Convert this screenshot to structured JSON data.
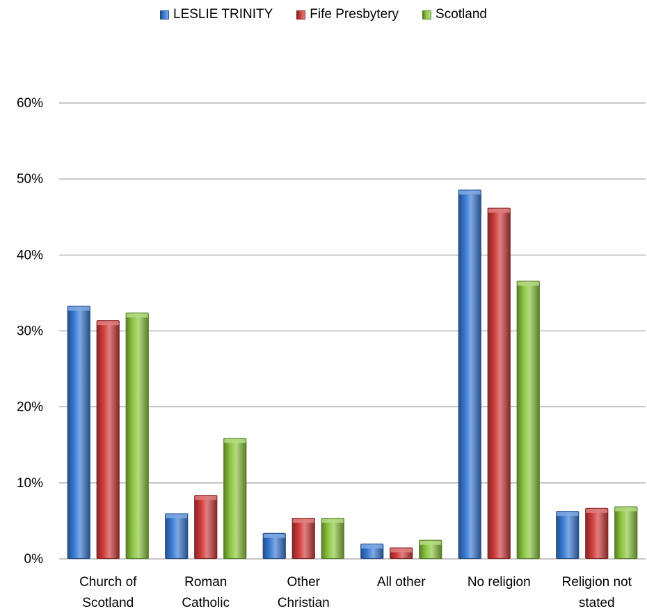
{
  "chart_data": {
    "type": "bar",
    "title": "",
    "xlabel": "",
    "ylabel": "",
    "categories": [
      [
        "Church of",
        "Scotland"
      ],
      [
        "Roman",
        "Catholic"
      ],
      [
        "Other",
        "Christian"
      ],
      [
        "All other"
      ],
      [
        "No religion"
      ],
      [
        "Religion not",
        "stated"
      ]
    ],
    "series": [
      {
        "name": "LESLIE TRINITY",
        "color": "#3a7bd5",
        "values": [
          33.3,
          6.0,
          3.4,
          2.0,
          48.6,
          6.3
        ]
      },
      {
        "name": "Fife Presbytery",
        "color": "#d13b3b",
        "values": [
          31.4,
          8.4,
          5.4,
          1.5,
          46.2,
          6.7
        ]
      },
      {
        "name": "Scotland",
        "color": "#8cc63f",
        "values": [
          32.4,
          15.9,
          5.4,
          2.5,
          36.6,
          6.9
        ]
      }
    ],
    "ylim": [
      0,
      60
    ],
    "yticks": [
      "0%",
      "10%",
      "20%",
      "30%",
      "40%",
      "50%",
      "60%"
    ],
    "grid": true,
    "legend_position": "top"
  }
}
